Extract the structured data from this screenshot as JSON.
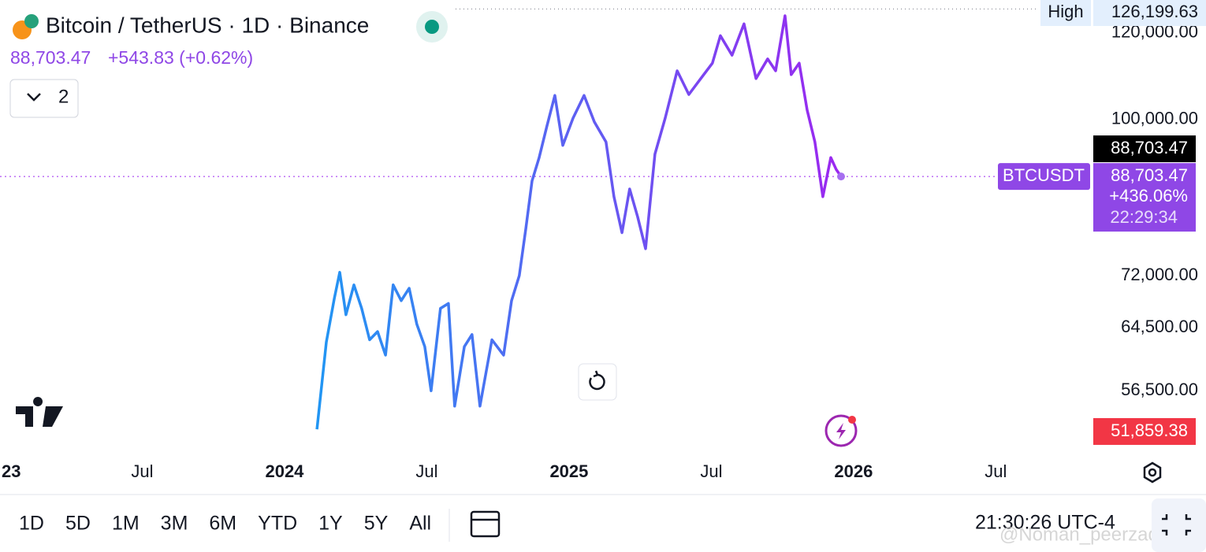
{
  "header": {
    "title": "Bitcoin / TetherUS · 1D · Binance",
    "price": "88,703.47",
    "change": "+543.83 (+0.62%)",
    "indicators": "2"
  },
  "chart_data": {
    "type": "line",
    "log_scale": true,
    "color_start": "#2196f3",
    "color_end": "#9c27f0",
    "x": [
      2024.114,
      2024.147,
      2024.175,
      2024.194,
      2024.216,
      2024.244,
      2024.271,
      2024.299,
      2024.327,
      2024.355,
      2024.382,
      2024.41,
      2024.438,
      2024.465,
      2024.493,
      2024.515,
      2024.548,
      2024.576,
      2024.598,
      2024.632,
      2024.659,
      2024.687,
      2024.729,
      2024.77,
      2024.798,
      2024.825,
      2024.848,
      2024.87,
      2024.895,
      2024.922,
      2024.95,
      2024.978,
      2025.014,
      2025.053,
      2025.089,
      2025.13,
      2025.158,
      2025.186,
      2025.213,
      2025.241,
      2025.269,
      2025.302,
      2025.338,
      2025.38,
      2025.421,
      2025.463,
      2025.504,
      2025.532,
      2025.573,
      2025.615,
      2025.657,
      2025.698,
      2025.726,
      2025.759,
      2025.781,
      2025.809,
      2025.837,
      2025.864,
      2025.892,
      2025.92,
      2025.939,
      2025.956
    ],
    "values": [
      52100,
      62600,
      68600,
      72500,
      66300,
      70600,
      67200,
      62900,
      64000,
      60900,
      70600,
      68300,
      70100,
      65000,
      62000,
      56500,
      67200,
      67900,
      54700,
      62000,
      63600,
      54700,
      62900,
      60900,
      68300,
      72000,
      79500,
      87900,
      92300,
      98600,
      105200,
      94700,
      100300,
      105200,
      99500,
      95400,
      85000,
      78800,
      86400,
      81500,
      76200,
      93000,
      100300,
      110800,
      105400,
      109000,
      112600,
      119300,
      114500,
      122300,
      109000,
      113600,
      110800,
      124400,
      109900,
      112600,
      102000,
      95400,
      85000,
      92300,
      90000,
      88703.47
    ],
    "xlim": [
      2023.0,
      2026.837
    ],
    "xticks": [
      {
        "value": 2023,
        "label": "23"
      },
      {
        "value": 2023.5,
        "label": "Jul"
      },
      2024,
      {
        "value": 2024.5,
        "label": "Jul"
      },
      2025,
      {
        "value": 2025.5,
        "label": "Jul"
      },
      2026,
      {
        "value": 2026.5,
        "label": "Jul"
      }
    ],
    "ylim": [
      50000,
      128600
    ],
    "yticks": [
      {
        "value": 56500,
        "label": "56,500.00"
      },
      {
        "value": 64500,
        "label": "64,500.00"
      },
      {
        "value": 72000,
        "label": "72,000.00"
      },
      {
        "value": 100000,
        "label": "100,000.00"
      },
      {
        "value": 120000,
        "label": "120,000.00"
      }
    ],
    "high_label": "High",
    "high": {
      "value": 126199.63,
      "label": "126,199.63"
    },
    "indicator_price": {
      "value": 88703.47,
      "label": "88,703.47"
    },
    "symbol": "BTCUSDT",
    "last": {
      "value": 88703.47,
      "label": "88,703.47"
    },
    "last_change": "+436.06%",
    "countdown": "22:29:34",
    "low": {
      "value": 51859.38,
      "label": "51,859.38"
    }
  },
  "toolbar": {
    "ranges": [
      "1D",
      "5D",
      "1M",
      "3M",
      "6M",
      "YTD",
      "1Y",
      "5Y",
      "All"
    ],
    "time": "21:30:26 UTC-4"
  },
  "watermark": "@Noman_peerzada"
}
